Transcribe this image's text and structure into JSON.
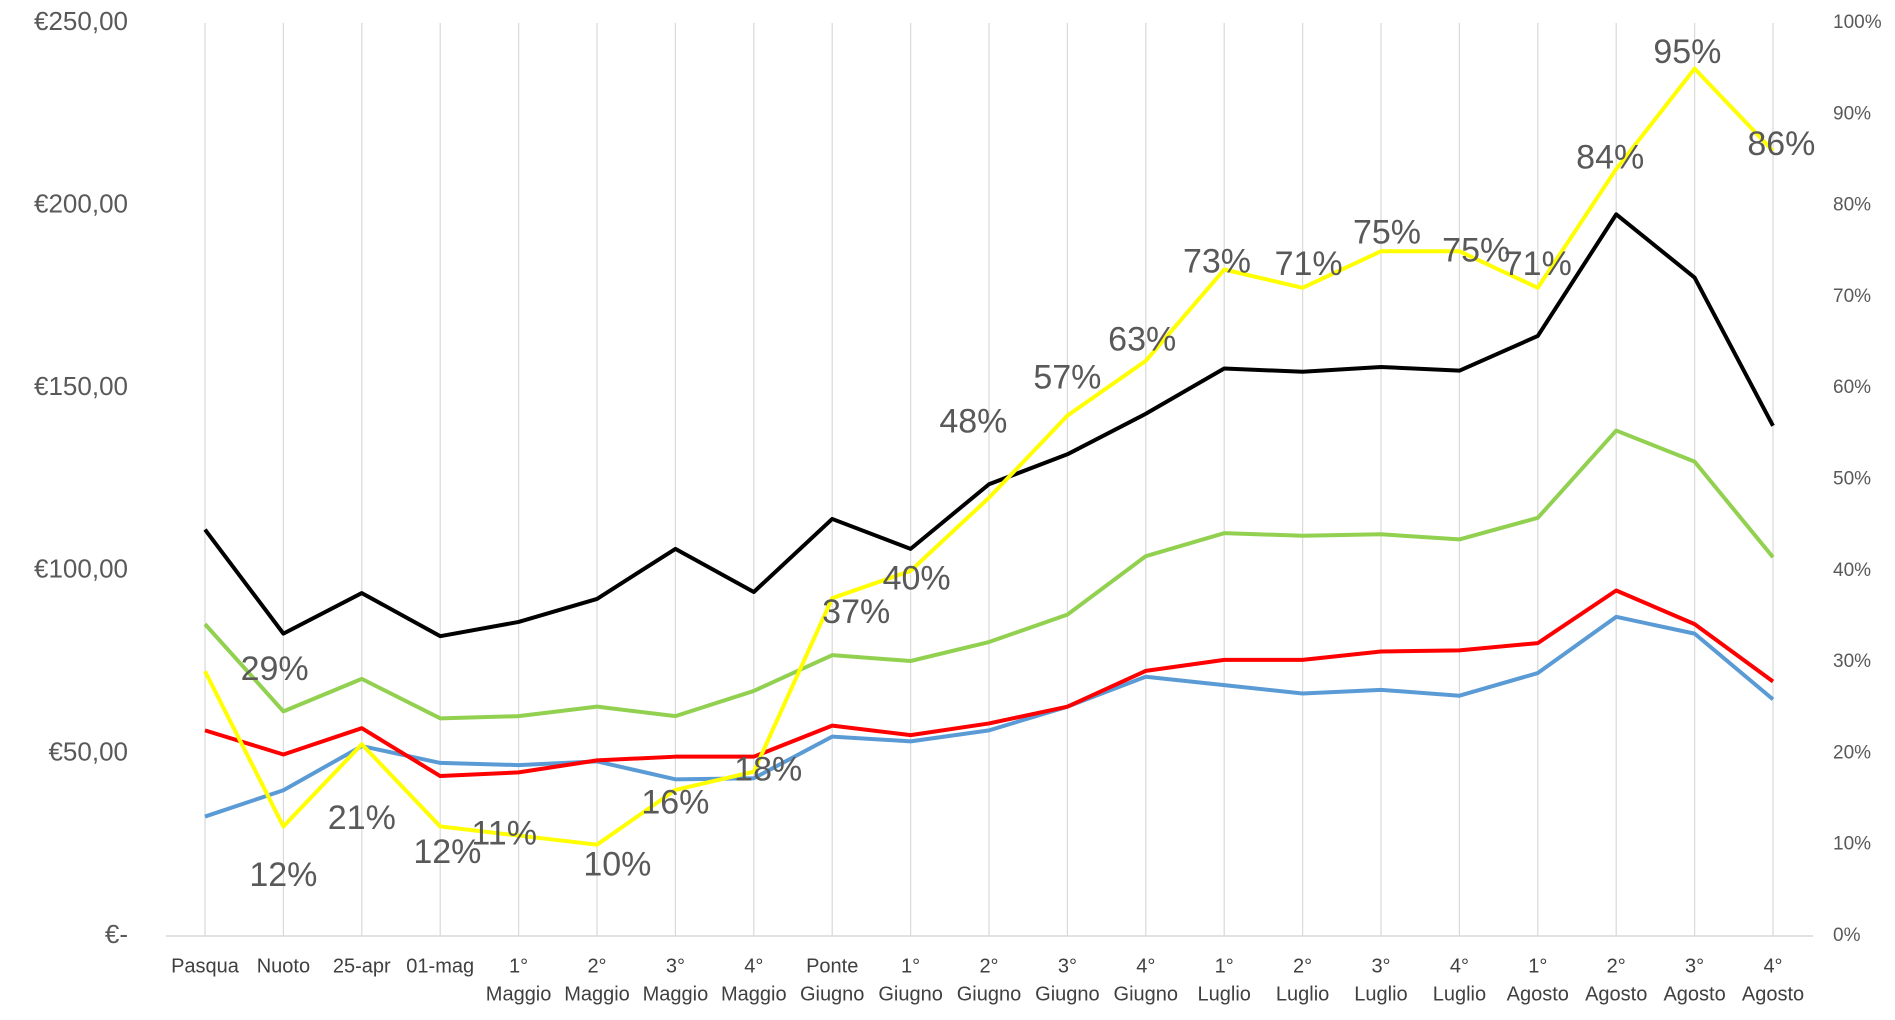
{
  "chart_data": {
    "type": "line",
    "categories": [
      [
        "Pasqua"
      ],
      [
        "Nuoto"
      ],
      [
        "25-apr"
      ],
      [
        "01-mag"
      ],
      [
        "1°",
        "Maggio"
      ],
      [
        "2°",
        "Maggio"
      ],
      [
        "3°",
        "Maggio"
      ],
      [
        "4°",
        "Maggio"
      ],
      [
        "Ponte",
        "Giugno"
      ],
      [
        "1°",
        "Giugno"
      ],
      [
        "2°",
        "Giugno"
      ],
      [
        "3°",
        "Giugno"
      ],
      [
        "4°",
        "Giugno"
      ],
      [
        "1°",
        "Luglio"
      ],
      [
        "2°",
        "Luglio"
      ],
      [
        "3°",
        "Luglio"
      ],
      [
        "4°",
        "Luglio"
      ],
      [
        "1°",
        "Agosto"
      ],
      [
        "2°",
        "Agosto"
      ],
      [
        "3°",
        "Agosto"
      ],
      [
        "4°",
        "Agosto"
      ]
    ],
    "ylim": [
      0,
      250
    ],
    "yticks": [
      {
        "value": 0,
        "label": "€-"
      },
      {
        "value": 50,
        "label": "€50,00"
      },
      {
        "value": 100,
        "label": "€100,00"
      },
      {
        "value": 150,
        "label": "€150,00"
      },
      {
        "value": 200,
        "label": "€200,00"
      },
      {
        "value": 250,
        "label": "€250,00"
      }
    ],
    "y2lim": [
      0,
      100
    ],
    "y2ticks": [
      {
        "value": 0,
        "label": "0%"
      },
      {
        "value": 10,
        "label": "10%"
      },
      {
        "value": 20,
        "label": "20%"
      },
      {
        "value": 30,
        "label": "30%"
      },
      {
        "value": 40,
        "label": "40%"
      },
      {
        "value": 50,
        "label": "50%"
      },
      {
        "value": 60,
        "label": "60%"
      },
      {
        "value": 70,
        "label": "70%"
      },
      {
        "value": 80,
        "label": "80%"
      },
      {
        "value": 90,
        "label": "90%"
      },
      {
        "value": 100,
        "label": "100%"
      }
    ],
    "grid": true,
    "series": [
      {
        "color": "#5b9bd5",
        "values": [
          32.7,
          39.9,
          52,
          47.4,
          46.8,
          47.8,
          42.9,
          43.2,
          54.6,
          53.3,
          56.3,
          62.8,
          71,
          68.7,
          66.4,
          67.4,
          65.8,
          72,
          87.4,
          82.8,
          64.8
        ]
      },
      {
        "color": "#ff0000",
        "values": [
          56.3,
          49.7,
          56.9,
          43.8,
          44.8,
          48.1,
          49.1,
          49.1,
          57.6,
          55,
          58.2,
          62.8,
          72.6,
          75.6,
          75.6,
          77.9,
          78.2,
          80.2,
          94.6,
          85.4,
          69.7
        ]
      },
      {
        "color": "#92d050",
        "values": [
          85.4,
          61.5,
          70.4,
          59.6,
          60.2,
          62.8,
          60.2,
          67.1,
          76.9,
          75.3,
          80.5,
          88,
          104,
          110.3,
          109.6,
          110,
          108.6,
          114.5,
          138.4,
          129.9,
          103.7
        ]
      },
      {
        "color": "#000000",
        "values": [
          111.3,
          82.8,
          93.9,
          82.1,
          86,
          92.3,
          106,
          94.2,
          114.2,
          106,
          123.7,
          131.9,
          143,
          155.4,
          154.5,
          155.8,
          154.8,
          164.3,
          197.6,
          180.3,
          139.7
        ]
      },
      {
        "color": "#ffff00",
        "axis": "y2",
        "values": [
          29,
          12,
          21,
          12,
          11,
          10,
          16,
          18,
          37,
          40,
          48,
          57,
          63,
          73,
          71,
          75,
          75,
          71,
          84,
          95,
          86
        ],
        "value_labels": [
          "29%",
          "12%",
          "21%",
          "12%",
          "11%",
          "10%",
          "16%",
          "18%",
          "37%",
          "40%",
          "48%",
          "57%",
          "63%",
          "73%",
          "71%",
          "75%",
          "75%",
          "71%",
          "84%",
          "95%",
          "86%"
        ]
      }
    ]
  }
}
